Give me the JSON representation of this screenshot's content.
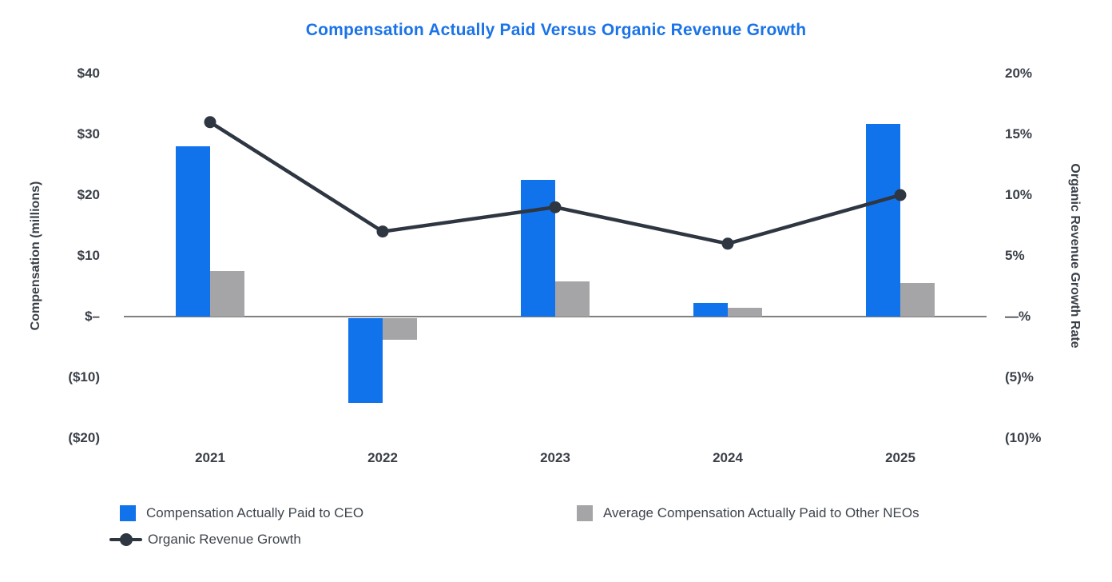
{
  "chart_data": {
    "type": "combo-bar-line",
    "title": "Compensation Actually Paid Versus Organic Revenue Growth",
    "categories": [
      "2021",
      "2022",
      "2023",
      "2024",
      "2025"
    ],
    "series": [
      {
        "name": "Compensation Actually Paid to CEO",
        "type": "bar",
        "axis": "left",
        "color": "#1173ec",
        "values": [
          28,
          -14,
          22.5,
          2.2,
          31.7
        ]
      },
      {
        "name": "Average Compensation Actually Paid to Other NEOs",
        "type": "bar",
        "axis": "left",
        "color": "#a5a5a8",
        "values": [
          7.5,
          -3.5,
          5.8,
          1.4,
          5.5
        ]
      },
      {
        "name": "Organic Revenue Growth",
        "type": "line",
        "axis": "right",
        "color": "#2e3642",
        "values": [
          16,
          7,
          9,
          6,
          10
        ]
      }
    ],
    "left_axis": {
      "title": "Compensation (millions)",
      "ticks": [
        "$40",
        "$30",
        "$20",
        "$10",
        "$–",
        "($10)",
        "($20)"
      ],
      "tick_values": [
        40,
        30,
        20,
        10,
        0,
        -10,
        -20
      ],
      "range": [
        -20,
        40
      ]
    },
    "right_axis": {
      "title": "Organic Revenue Growth Rate",
      "ticks": [
        "20%",
        "15%",
        "10%",
        "5%",
        "—%",
        "(5)%",
        "(10)%"
      ],
      "tick_values": [
        20,
        15,
        10,
        5,
        0,
        -5,
        -10
      ],
      "range": [
        -10,
        20
      ]
    },
    "x_axis": {
      "labels": [
        "2021",
        "2022",
        "2023",
        "2024",
        "2025"
      ]
    },
    "grid": false,
    "legend_position": "bottom-left",
    "title_color": "#1a73e8",
    "zero_line_color": "#808080",
    "text_color": "#3a3f48"
  }
}
